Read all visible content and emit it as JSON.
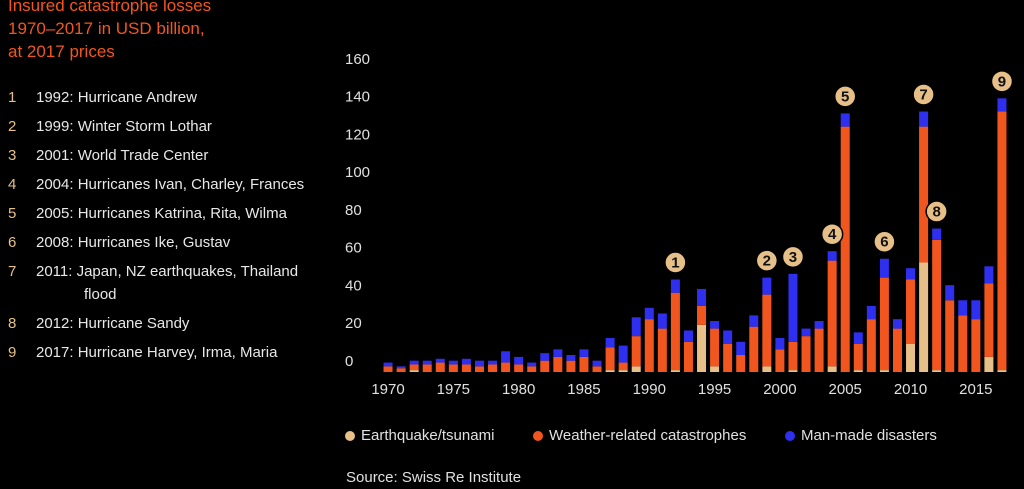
{
  "chart_data": {
    "type": "stacked_bar",
    "title_lines": [
      "Insured catastrophe losses",
      "1970–2017 in USD billion,",
      "at 2017 prices"
    ],
    "events": [
      {
        "number": "1",
        "text": "1992: Hurricane Andrew"
      },
      {
        "number": "2",
        "text": "1999: Winter Storm Lothar"
      },
      {
        "number": "3",
        "text": "2001: World Trade Center"
      },
      {
        "number": "4",
        "text": "2004: Hurricanes Ivan, Charley, Frances"
      },
      {
        "number": "5",
        "text": "2005: Hurricanes Katrina, Rita, Wilma"
      },
      {
        "number": "6",
        "text": "2008: Hurricanes Ike, Gustav"
      },
      {
        "number": "7",
        "text": "2011: Japan, NZ earthquakes, Thailand flood"
      },
      {
        "number": "8",
        "text": "2012: Hurricane Sandy"
      },
      {
        "number": "9",
        "text": "2017: Hurricane Harvey, Irma, Maria"
      }
    ],
    "x": [
      1970,
      1971,
      1972,
      1973,
      1974,
      1975,
      1976,
      1977,
      1978,
      1979,
      1980,
      1981,
      1982,
      1983,
      1984,
      1985,
      1986,
      1987,
      1988,
      1989,
      1990,
      1991,
      1992,
      1993,
      1994,
      1995,
      1996,
      1997,
      1998,
      1999,
      2000,
      2001,
      2002,
      2003,
      2004,
      2005,
      2006,
      2007,
      2008,
      2009,
      2010,
      2011,
      2012,
      2013,
      2014,
      2015,
      2016,
      2017
    ],
    "xlim": [
      1969.5,
      2017.5
    ],
    "xticks": [
      1970,
      1975,
      1980,
      1985,
      1990,
      1995,
      2000,
      2005,
      2010,
      2015
    ],
    "ylim": [
      0,
      160
    ],
    "yticks": [
      0,
      20,
      40,
      60,
      80,
      100,
      120,
      140,
      160
    ],
    "series": [
      {
        "name": "Earthquake/tsunami",
        "color": "#e6c088",
        "values": [
          0,
          0,
          1,
          0,
          0,
          0,
          0,
          0,
          0,
          0,
          0,
          0,
          0,
          0,
          0,
          0,
          0,
          1,
          1,
          3,
          0,
          0,
          1,
          0,
          25,
          3,
          0,
          0,
          0,
          3,
          0,
          1,
          0,
          0,
          3,
          0,
          1,
          0,
          1,
          0,
          15,
          58,
          1,
          0,
          0,
          0,
          8,
          1
        ]
      },
      {
        "name": "Weather-related catastrophes",
        "color": "#f2561f",
        "values": [
          3,
          2,
          3,
          4,
          5,
          4,
          4,
          3,
          4,
          5,
          4,
          3,
          6,
          8,
          6,
          8,
          3,
          12,
          4,
          16,
          28,
          23,
          41,
          16,
          10,
          20,
          15,
          9,
          24,
          38,
          12,
          15,
          19,
          23,
          56,
          130,
          14,
          28,
          49,
          23,
          34,
          72,
          69,
          38,
          30,
          28,
          39,
          137
        ]
      },
      {
        "name": "Man-made disasters",
        "color": "#2f2ff0",
        "values": [
          2,
          1,
          2,
          2,
          2,
          2,
          3,
          3,
          2,
          6,
          4,
          2,
          4,
          4,
          3,
          4,
          3,
          5,
          9,
          10,
          6,
          8,
          7,
          6,
          9,
          4,
          7,
          7,
          6,
          9,
          6,
          36,
          4,
          4,
          5,
          7,
          6,
          7,
          10,
          5,
          6,
          8,
          6,
          8,
          8,
          10,
          9,
          7
        ]
      }
    ],
    "annotations": [
      {
        "text": "1",
        "x": 1992
      },
      {
        "text": "2",
        "x": 1999
      },
      {
        "text": "3",
        "x": 2001
      },
      {
        "text": "4",
        "x": 2004
      },
      {
        "text": "5",
        "x": 2005
      },
      {
        "text": "6",
        "x": 2008
      },
      {
        "text": "7",
        "x": 2011
      },
      {
        "text": "8",
        "x": 2012
      },
      {
        "text": "9",
        "x": 2017
      }
    ],
    "source": "Source: Swiss Re Institute"
  }
}
